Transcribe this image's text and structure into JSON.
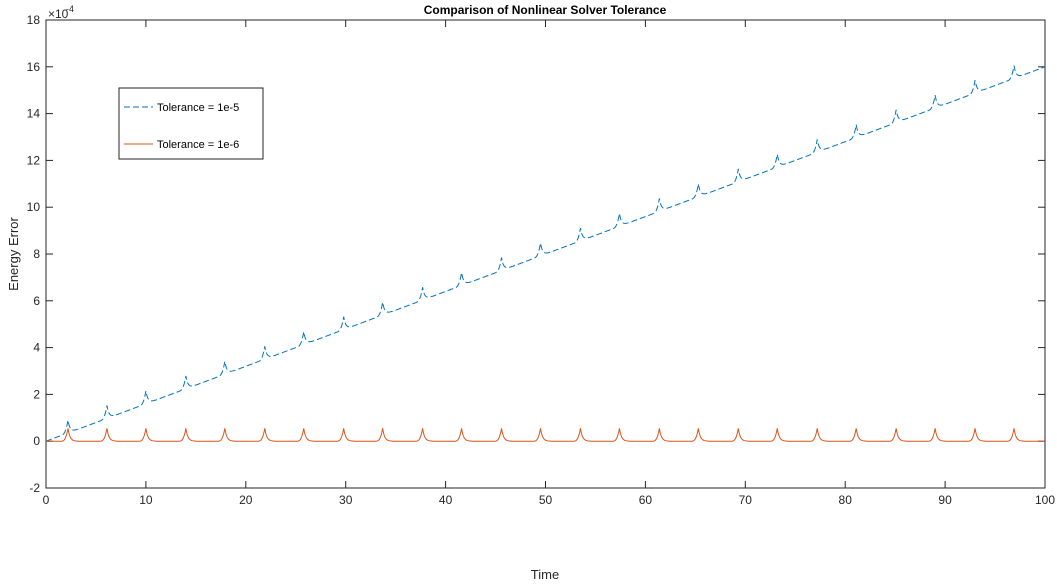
{
  "chart_data": {
    "type": "line",
    "title": "Comparison of Nonlinear Solver Tolerance",
    "xlabel": "Time",
    "ylabel": "Energy Error",
    "xlim": [
      0,
      100
    ],
    "ylim": [
      -2,
      18
    ],
    "y_exponent_label": "×10^-4",
    "y_multiplier": "×10",
    "y_exponent": "-4",
    "x_ticks": [
      "0",
      "10",
      "20",
      "30",
      "40",
      "50",
      "60",
      "70",
      "80",
      "90",
      "100"
    ],
    "y_ticks": [
      "-2",
      "0",
      "2",
      "4",
      "6",
      "8",
      "10",
      "12",
      "14",
      "16",
      "18"
    ],
    "x_tick_values": [
      0,
      10,
      20,
      30,
      40,
      50,
      60,
      70,
      80,
      90,
      100
    ],
    "y_tick_values": [
      -2,
      0,
      2,
      4,
      6,
      8,
      10,
      12,
      14,
      16,
      18
    ],
    "grid": false,
    "legend_position": "top-left",
    "series": [
      {
        "name": "Tolerance = 1e-5",
        "color": "#0072BD",
        "style": "dashed",
        "trend_start": 0.0,
        "trend_end": 16.0,
        "peak_times": [
          2.2,
          6.1,
          10.0,
          14.0,
          17.9,
          21.9,
          25.8,
          29.8,
          33.7,
          37.7,
          41.6,
          45.6,
          49.5,
          53.5,
          57.4,
          61.4,
          65.3,
          69.3,
          73.2,
          77.2,
          81.1,
          85.1,
          89.0,
          93.0,
          96.9
        ],
        "peak_height": 0.55
      },
      {
        "name": "Tolerance = 1e-6",
        "color": "#D95319",
        "style": "solid",
        "baseline": 0.0,
        "peak_times": [
          2.2,
          6.1,
          10.0,
          14.0,
          17.9,
          21.9,
          25.8,
          29.8,
          33.7,
          37.7,
          41.6,
          45.6,
          49.5,
          53.5,
          57.4,
          61.4,
          65.3,
          69.3,
          73.2,
          77.2,
          81.1,
          85.1,
          89.0,
          93.0,
          96.9
        ],
        "peak_height": 0.55
      }
    ]
  }
}
